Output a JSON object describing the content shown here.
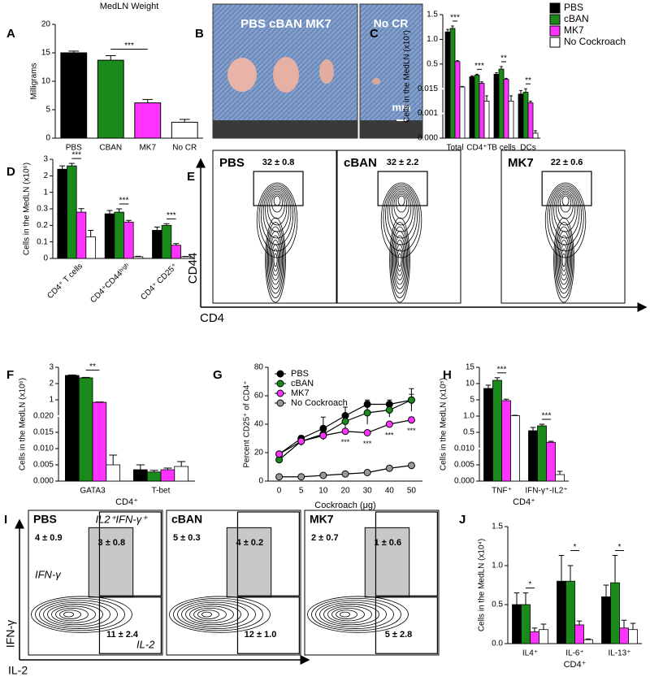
{
  "chart_data": [
    {
      "panel": "A",
      "type": "bar",
      "title": "MedLN Weight",
      "y_label": "Milligrams",
      "categories": [
        "PBS",
        "CBAN",
        "MK7",
        "No CR"
      ],
      "values": [
        15,
        13.7,
        6.2,
        2.8
      ],
      "errors": [
        0.3,
        0.8,
        0.6,
        0.5
      ],
      "colors": [
        "#000000",
        "#1a8a1a",
        "#ff33ff",
        "#ffffff"
      ],
      "ylim": [
        0,
        20
      ],
      "yticks": [
        0,
        5,
        10,
        15,
        20
      ],
      "significance": [
        null,
        "***",
        null,
        null
      ]
    },
    {
      "panel": "C",
      "type": "bar",
      "y_label": "Cells in the MedLN (x10⁷)",
      "yscale": "broken",
      "legend": "right",
      "categories": [
        "Total",
        "CD4⁺T",
        "B cells",
        "DCs"
      ],
      "series": [
        {
          "name": "PBS",
          "color": "#000000",
          "values": [
            1.15,
            0.25,
            0.3,
            0.012
          ],
          "errors": [
            0.05,
            0.02,
            0.03,
            0.002
          ]
        },
        {
          "name": "cBAN",
          "color": "#1a8a1a",
          "values": [
            1.22,
            0.28,
            0.4,
            0.013
          ],
          "errors": [
            0.05,
            0.02,
            0.05,
            0.002
          ]
        },
        {
          "name": "MK7",
          "color": "#ff33ff",
          "values": [
            0.55,
            0.12,
            0.2,
            0.007
          ],
          "errors": [
            0.02,
            0.03,
            0.02,
            0.001
          ]
        },
        {
          "name": "No Cockroach",
          "color": "#ffffff",
          "values": [
            0.05,
            0.008,
            0.008,
            0.0002
          ],
          "errors": [
            0.01,
            0.003,
            0.003,
            0.0001
          ]
        }
      ],
      "ylim": [
        0,
        1.5
      ],
      "yticks": [
        {
          "value": 0,
          "label": "0.000"
        },
        0.001,
        0.015,
        0.5,
        {
          "value": 1,
          "label": "1.0"
        },
        1.5
      ],
      "significance": [
        "***",
        "***",
        "**",
        "**"
      ]
    },
    {
      "panel": "D",
      "type": "bar",
      "y_label": "Cells in the MedLN (x10⁶)",
      "yscale": "broken",
      "xtick_rotation": -45,
      "categories": [
        "CD4⁺ T cells",
        "CD4⁺CD44ʰⁱᵍʰ",
        "CD4⁺ CD25⁺"
      ],
      "series": [
        {
          "name": "PBS",
          "color": "#000000",
          "values": [
            2.4,
            0.27,
            0.17
          ],
          "errors": [
            0.2,
            0.02,
            0.02
          ]
        },
        {
          "name": "cBAN",
          "color": "#1a8a1a",
          "values": [
            2.6,
            0.28,
            0.2
          ],
          "errors": [
            0.15,
            0.02,
            0.01
          ]
        },
        {
          "name": "MK7",
          "color": "#ff33ff",
          "values": [
            0.28,
            0.22,
            0.08
          ],
          "errors": [
            0.03,
            0.01,
            0.01
          ]
        },
        {
          "name": "No Cockroach",
          "color": "#ffffff",
          "values": [
            0.13,
            0.01,
            0.01
          ],
          "errors": [
            0.04,
            0.003,
            0.002
          ]
        }
      ],
      "ylim": [
        0,
        3
      ],
      "yticks": [
        0,
        0.1,
        0.2,
        0.3,
        1,
        2,
        3
      ],
      "significance": [
        "***",
        "***",
        "***"
      ]
    },
    {
      "panel": "F",
      "type": "bar",
      "y_label": "Cells in the MedLN (x10⁶)",
      "x_label": "CD4⁺",
      "yscale": "broken",
      "categories": [
        "GATA3",
        "T-bet"
      ],
      "series": [
        {
          "name": "PBS",
          "color": "#000000",
          "values": [
            2.5,
            0.0035
          ],
          "errors": [
            0.03,
            0.0015
          ]
        },
        {
          "name": "cBAN",
          "color": "#1a8a1a",
          "values": [
            2.35,
            0.0028
          ],
          "errors": [
            0.03,
            0.0005
          ]
        },
        {
          "name": "MK7",
          "color": "#ff33ff",
          "values": [
            0.85,
            0.0035
          ],
          "errors": [
            0.02,
            0.0005
          ]
        },
        {
          "name": "No Cockroach",
          "color": "#ffffff",
          "values": [
            0.005,
            0.0045
          ],
          "errors": [
            0.003,
            0.0015
          ]
        }
      ],
      "ylim": [
        0,
        3
      ],
      "yticks": [
        {
          "value": 0,
          "label": "0.000"
        },
        0.005,
        {
          "value": 0.01,
          "label": "0.010"
        },
        0.015,
        {
          "value": 0.02,
          "label": "0.020"
        },
        1,
        2,
        3
      ],
      "significance": [
        "**",
        null
      ]
    },
    {
      "panel": "G",
      "type": "line",
      "y_label": "Percent CD25⁺ of CD4⁺",
      "x_label": "Cockroach (μg)",
      "legend": "upper-left",
      "categories": [
        "0",
        "5",
        "10",
        "20",
        "30",
        "40",
        "50"
      ],
      "series": [
        {
          "name": "PBS",
          "color": "#000000",
          "values": [
            19,
            30,
            37,
            46,
            54,
            54,
            57
          ],
          "errors": [
            1,
            2,
            8,
            6,
            3,
            3,
            8
          ]
        },
        {
          "name": "cBAN",
          "color": "#1a8a1a",
          "values": [
            15,
            28,
            33,
            42,
            48,
            50,
            57
          ],
          "errors": [
            2,
            3,
            3,
            5,
            8,
            5,
            4
          ]
        },
        {
          "name": "MK7",
          "color": "#ff33ff",
          "values": [
            19,
            28,
            32,
            35,
            34,
            40,
            43
          ],
          "errors": [
            1,
            2,
            3,
            1,
            1,
            1,
            2
          ]
        },
        {
          "name": "No Cockroach",
          "color": "#999999",
          "values": [
            3,
            3,
            4,
            5,
            6,
            9,
            11
          ],
          "errors": [
            0.5,
            0.5,
            0.5,
            1,
            1.5,
            1,
            1
          ]
        }
      ],
      "ylim": [
        0,
        80
      ],
      "yticks": [
        0,
        20,
        40,
        60,
        80
      ],
      "significance": [
        null,
        null,
        null,
        "***",
        "***",
        "***",
        "***"
      ]
    },
    {
      "panel": "H",
      "type": "bar",
      "y_label": "Cells in the MedLN (x10⁵)",
      "x_label": "CD4⁺",
      "yscale": "broken",
      "categories": [
        "TNF⁺",
        "IFN-γ⁺-IL2⁺"
      ],
      "series": [
        {
          "name": "PBS",
          "color": "#000000",
          "values": [
            8.5,
            0.55
          ],
          "errors": [
            1,
            0.1
          ]
        },
        {
          "name": "cBAN",
          "color": "#1a8a1a",
          "values": [
            11,
            0.7
          ],
          "errors": [
            0.8,
            0.05
          ]
        },
        {
          "name": "MK7",
          "color": "#ff33ff",
          "values": [
            4.8,
            0.2
          ],
          "errors": [
            0.4,
            0.03
          ]
        },
        {
          "name": "No Cockroach",
          "color": "#ffffff",
          "values": [
            1.1,
            0.002
          ],
          "errors": [
            0.1,
            0.001
          ]
        }
      ],
      "ylim": [
        0,
        15
      ],
      "yticks": [
        {
          "value": 0,
          "label": "0.000"
        },
        0.005,
        {
          "value": 0.01,
          "label": "0.010"
        },
        0.5,
        {
          "value": 1,
          "label": "1.0"
        },
        5,
        10,
        15
      ],
      "significance": [
        "***",
        "***"
      ]
    },
    {
      "panel": "J",
      "type": "bar",
      "y_label": "Cells in the MedLN (x10⁴)",
      "x_label": "CD4⁺",
      "categories": [
        "IL4⁺",
        "IL-6⁺",
        "IL-13⁺"
      ],
      "series": [
        {
          "name": "PBS",
          "color": "#000000",
          "values": [
            0.5,
            0.8,
            0.6
          ],
          "errors": [
            0.15,
            0.33,
            0.15
          ]
        },
        {
          "name": "cBAN",
          "color": "#1a8a1a",
          "values": [
            0.5,
            0.8,
            0.78
          ],
          "errors": [
            0.15,
            0.2,
            0.35
          ]
        },
        {
          "name": "MK7",
          "color": "#ff33ff",
          "values": [
            0.15,
            0.24,
            0.2
          ],
          "errors": [
            0.05,
            0.05,
            0.1
          ]
        },
        {
          "name": "No Cockroach",
          "color": "#ffffff",
          "values": [
            0.18,
            0.05,
            0.18
          ],
          "errors": [
            0.07,
            0.01,
            0.08
          ]
        }
      ],
      "ylim": [
        0,
        1.5
      ],
      "yticks": [
        {
          "value": 0,
          "label": "0.0"
        },
        0.5,
        {
          "value": 1,
          "label": "1.0"
        },
        1.5
      ],
      "significance": [
        "*",
        "*",
        "*"
      ]
    }
  ],
  "photo": {
    "panel": "B",
    "label": "PBS cBAN MK7",
    "inset_label": "No CR",
    "scale_label": "mm"
  },
  "flow_cd44": {
    "panel": "E",
    "y_label": "CD44",
    "x_label": "CD4",
    "plots": [
      {
        "name": "PBS",
        "gate": "32 ± 0.8"
      },
      {
        "name": "cBAN",
        "gate": "32 ± 2.2"
      },
      {
        "name": "MK7",
        "gate": "22 ± 0.6"
      }
    ]
  },
  "flow_cytokine": {
    "panel": "I",
    "y_label": "IFN-γ",
    "x_label": "IL-2",
    "gate_label": "IL2⁺IFN-γ⁺",
    "inner_y_label": "IFN-γ",
    "inner_x_label": "IL-2",
    "plots": [
      {
        "name": "PBS",
        "upper_left": "4 ± 0.9",
        "upper_right": "3 ± 0.8",
        "lower_right": "11 ± 2.4"
      },
      {
        "name": "cBAN",
        "upper_left": "5 ± 0.3",
        "upper_right": "4 ± 0.2",
        "lower_right": "12 ± 1.0"
      },
      {
        "name": "MK7",
        "upper_left": "2 ± 0.7",
        "upper_right": "1 ± 0.6",
        "lower_right": "5 ± 2.8"
      }
    ]
  }
}
